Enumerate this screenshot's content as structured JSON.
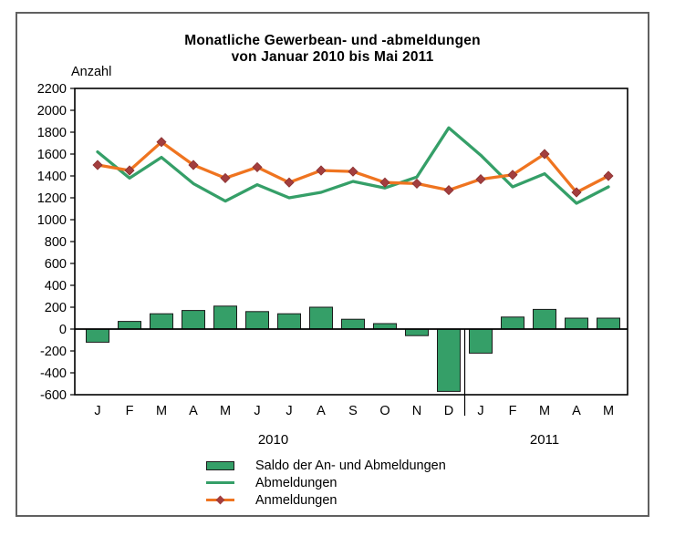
{
  "title": {
    "line1": "Monatliche Gewerbean- und -abmeldungen",
    "line2": "von Januar 2010 bis Mai 2011"
  },
  "y_axis_label": "Anzahl",
  "chart_data": {
    "type": "combo-bar-line",
    "title": "Monatliche Gewerbean- und -abmeldungen von Januar 2010 bis Mai 2011",
    "ylabel": "Anzahl",
    "xlabel": "",
    "grid": false,
    "legend_position": "bottom-left",
    "ylim": [
      -600,
      2200
    ],
    "ytick_step": 200,
    "yticks": [
      2200,
      2000,
      1800,
      1600,
      1400,
      1200,
      1000,
      800,
      600,
      400,
      200,
      0,
      -200,
      -400,
      -600
    ],
    "categories": [
      "J",
      "F",
      "M",
      "A",
      "M",
      "J",
      "J",
      "A",
      "S",
      "O",
      "N",
      "D",
      "J",
      "F",
      "M",
      "A",
      "M"
    ],
    "year_groups": [
      {
        "label": "2010",
        "months": 12
      },
      {
        "label": "2011",
        "months": 5
      }
    ],
    "series": [
      {
        "name": "Saldo der An- und Abmeldungen",
        "type": "bar",
        "color": "#359F68",
        "values": [
          -120,
          70,
          140,
          170,
          210,
          160,
          140,
          200,
          90,
          50,
          -60,
          -570,
          -220,
          110,
          180,
          100,
          100
        ]
      },
      {
        "name": "Abmeldungen",
        "type": "line",
        "color": "#359F68",
        "values": [
          1620,
          1380,
          1570,
          1330,
          1170,
          1320,
          1200,
          1250,
          1350,
          1290,
          1390,
          1840,
          1590,
          1300,
          1420,
          1150,
          1300
        ]
      },
      {
        "name": "Anmeldungen",
        "type": "line",
        "marker": "diamond",
        "color": "#EF7420",
        "marker_color": "#A33E3E",
        "values": [
          1500,
          1450,
          1710,
          1500,
          1380,
          1480,
          1340,
          1450,
          1440,
          1340,
          1330,
          1270,
          1370,
          1410,
          1600,
          1250,
          1400
        ]
      }
    ]
  }
}
